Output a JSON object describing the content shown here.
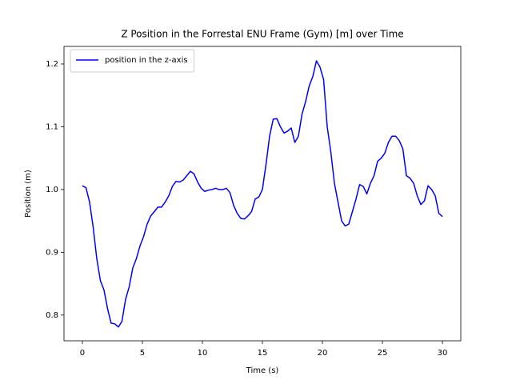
{
  "chart_data": {
    "type": "line",
    "title": "Z Position in the Forrestal ENU Frame (Gym) [m] over Time",
    "x_label": "Time (s)",
    "y_label": "Position (m)",
    "x": [
      0,
      0.3,
      0.6,
      0.9,
      1.2,
      1.5,
      1.8,
      2.1,
      2.4,
      2.7,
      3.0,
      3.3,
      3.6,
      3.9,
      4.2,
      4.5,
      4.8,
      5.1,
      5.4,
      5.7,
      6.0,
      6.3,
      6.6,
      6.9,
      7.2,
      7.5,
      7.8,
      8.1,
      8.4,
      8.7,
      9.0,
      9.3,
      9.6,
      9.9,
      10.2,
      10.5,
      10.8,
      11.1,
      11.4,
      11.7,
      12.0,
      12.3,
      12.6,
      12.9,
      13.2,
      13.5,
      13.8,
      14.1,
      14.4,
      14.7,
      15.0,
      15.3,
      15.6,
      15.9,
      16.2,
      16.5,
      16.8,
      17.1,
      17.4,
      17.7,
      18.0,
      18.3,
      18.6,
      18.9,
      19.2,
      19.5,
      19.8,
      20.1,
      20.4,
      20.7,
      21.0,
      21.3,
      21.6,
      21.9,
      22.2,
      22.5,
      22.8,
      23.1,
      23.4,
      23.7,
      24.0,
      24.3,
      24.6,
      24.9,
      25.2,
      25.5,
      25.8,
      26.1,
      26.4,
      26.7,
      27.0,
      27.3,
      27.6,
      27.9,
      28.2,
      28.5,
      28.8,
      29.1,
      29.4,
      29.7,
      30.0
    ],
    "series": [
      {
        "name": "position in the z-axis",
        "color": "#0000ff",
        "values": [
          1.006,
          1.003,
          0.98,
          0.94,
          0.89,
          0.855,
          0.84,
          0.81,
          0.787,
          0.786,
          0.781,
          0.79,
          0.825,
          0.845,
          0.875,
          0.89,
          0.91,
          0.925,
          0.945,
          0.958,
          0.965,
          0.972,
          0.972,
          0.98,
          0.99,
          1.005,
          1.013,
          1.012,
          1.015,
          1.022,
          1.029,
          1.025,
          1.012,
          1.002,
          0.997,
          0.999,
          1.0,
          1.002,
          1.0,
          1.0,
          1.002,
          0.995,
          0.975,
          0.962,
          0.954,
          0.953,
          0.958,
          0.965,
          0.985,
          0.988,
          1.0,
          1.04,
          1.085,
          1.112,
          1.113,
          1.1,
          1.09,
          1.093,
          1.098,
          1.075,
          1.085,
          1.12,
          1.14,
          1.165,
          1.18,
          1.205,
          1.195,
          1.175,
          1.1,
          1.06,
          1.01,
          0.98,
          0.95,
          0.942,
          0.945,
          0.965,
          0.985,
          1.008,
          1.005,
          0.993,
          1.01,
          1.022,
          1.045,
          1.05,
          1.058,
          1.075,
          1.085,
          1.085,
          1.078,
          1.065,
          1.022,
          1.018,
          1.01,
          0.99,
          0.976,
          0.982,
          1.006,
          1.0,
          0.99,
          0.962,
          0.957
        ]
      }
    ],
    "xlim": [
      -1.53,
      31.53
    ],
    "ylim": [
      0.759,
      1.228
    ],
    "xticks": [
      0,
      5,
      10,
      15,
      20,
      25,
      30
    ],
    "yticks": [
      0.8,
      0.9,
      {
        "value": 1.0,
        "label": "1.0"
      },
      1.1,
      1.2
    ],
    "legend": "upper left"
  }
}
